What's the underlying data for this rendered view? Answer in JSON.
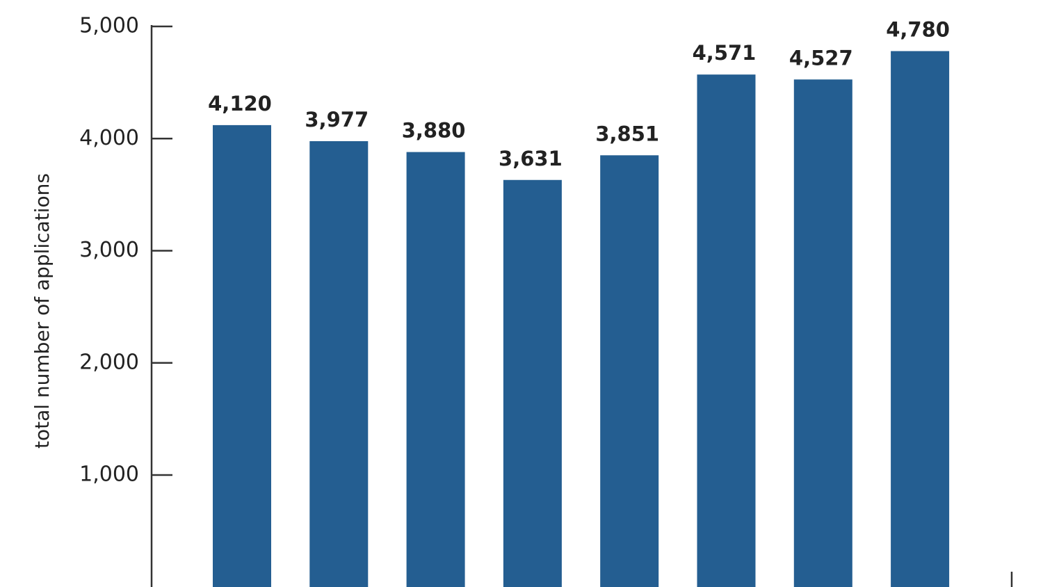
{
  "chart_data": {
    "type": "bar",
    "y_label": "total number of applications",
    "values": [
      4120,
      3977,
      3880,
      3631,
      3851,
      4571,
      4527,
      4780
    ],
    "value_labels": [
      "4,120",
      "3,977",
      "3,880",
      "3,631",
      "3,851",
      "4,571",
      "4,527",
      "4,780"
    ],
    "color": "#245e91",
    "ylim": [
      0,
      5000
    ],
    "yticks": [
      {
        "value": 1000,
        "label": "1,000"
      },
      {
        "value": 2000,
        "label": "2,000"
      },
      {
        "value": 3000,
        "label": "3,000"
      },
      {
        "value": 4000,
        "label": "4,000"
      },
      {
        "value": 5000,
        "label": "5,000"
      }
    ]
  }
}
